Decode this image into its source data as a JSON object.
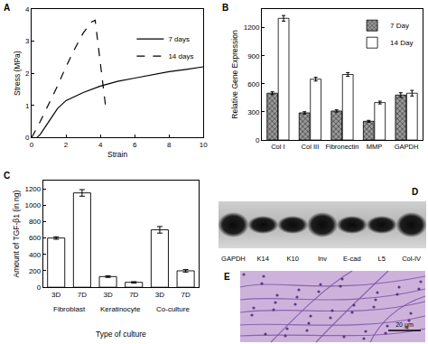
{
  "chart_data": [
    {
      "panel": "A",
      "type": "line",
      "xlabel": "Strain",
      "ylabel": "Stress (MPa)",
      "xlim": [
        0,
        10
      ],
      "xticks": [
        0,
        2,
        4,
        6,
        8,
        10
      ],
      "ylim": [
        0,
        4
      ],
      "yticks": [
        0,
        1,
        2,
        3,
        4
      ],
      "legend": "right",
      "series": [
        {
          "name": "7 days",
          "color": "#000000",
          "line_style": "solid",
          "x": [
            0.3,
            0.5,
            1,
            1.5,
            2,
            3,
            4,
            5,
            6,
            7,
            8,
            9,
            10
          ],
          "values": [
            0,
            0.1,
            0.5,
            0.9,
            1.15,
            1.4,
            1.6,
            1.75,
            1.85,
            1.95,
            2.05,
            2.12,
            2.2
          ]
        },
        {
          "name": "14 days",
          "color": "#000000",
          "line_style": "dashed",
          "x": [
            0,
            0.5,
            1,
            1.5,
            2,
            2.5,
            3,
            3.5,
            3.7,
            4,
            4.3,
            4.4
          ],
          "values": [
            0,
            0.5,
            1.05,
            1.6,
            2.2,
            2.75,
            3.25,
            3.6,
            3.65,
            2.3,
            1.0,
            0.8
          ]
        }
      ]
    },
    {
      "panel": "B",
      "type": "bar",
      "ylabel": "Relative Gene Expression",
      "categories": [
        "Col I",
        "Col III",
        "Fibronectin",
        "MMP",
        "GAPDH"
      ],
      "ylim": [
        0,
        1400
      ],
      "yticks": [
        0,
        300,
        600,
        900,
        1200
      ],
      "legend": "upper right",
      "series": [
        {
          "name": "7 Day",
          "color": "#9a9a9a",
          "marker": "crosshatch",
          "values": [
            500,
            290,
            310,
            200,
            480
          ],
          "errors": [
            15,
            12,
            12,
            10,
            25
          ]
        },
        {
          "name": "14 Day",
          "color": "#ffffff",
          "values": [
            1300,
            650,
            700,
            400,
            500
          ],
          "errors": [
            30,
            20,
            20,
            15,
            30
          ]
        }
      ]
    },
    {
      "panel": "C",
      "type": "bar",
      "xlabel": "Type of culture",
      "ylabel": "Amount of TGF-β1 (in ng)",
      "categories": [
        "3D",
        "7D",
        "3D",
        "7D",
        "3D",
        "7D"
      ],
      "group_labels": [
        "Fibroblast",
        "Keratinocyte",
        "Co-culture"
      ],
      "values": [
        600,
        1150,
        130,
        60,
        700,
        200
      ],
      "errors": [
        15,
        40,
        10,
        8,
        40,
        15
      ],
      "color": "#ffffff",
      "ylim": [
        0,
        1300
      ],
      "yticks": [
        0,
        200,
        400,
        600,
        800,
        1000,
        1200
      ]
    }
  ],
  "western_blot": {
    "panel": "D",
    "lanes": [
      "GAPDH",
      "K14",
      "K10",
      "Inv",
      "E-cad",
      "L5",
      "Col-IV"
    ]
  },
  "micrograph": {
    "panel": "E",
    "scale_bar": "20 μm"
  }
}
